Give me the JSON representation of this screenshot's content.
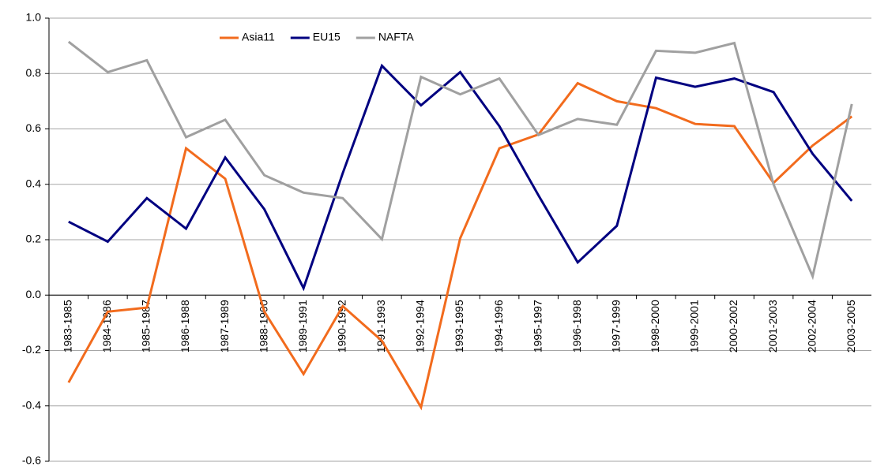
{
  "chart_data": {
    "type": "line",
    "categories": [
      "1983-1985",
      "1984-1986",
      "1985-1987",
      "1986-1988",
      "1987-1989",
      "1988-1990",
      "1989-1991",
      "1990-1992",
      "1991-1993",
      "1992-1994",
      "1993-1995",
      "1994-1996",
      "1995-1997",
      "1996-1998",
      "1997-1999",
      "1998-2000",
      "1999-2001",
      "2000-2002",
      "2001-2003",
      "2002-2004",
      "2003-2005"
    ],
    "series": [
      {
        "name": "Asia11",
        "color": "#f26b1d",
        "values": [
          -0.316,
          -0.06,
          -0.045,
          0.53,
          0.42,
          -0.06,
          -0.285,
          -0.04,
          -0.165,
          -0.405,
          0.205,
          0.53,
          0.58,
          0.765,
          0.7,
          0.675,
          0.618,
          0.61,
          0.405,
          0.54,
          0.645
        ]
      },
      {
        "name": "EU15",
        "color": "#000080",
        "values": [
          0.265,
          0.193,
          0.35,
          0.24,
          0.497,
          0.31,
          0.025,
          0.44,
          0.828,
          0.685,
          0.805,
          0.61,
          0.36,
          0.118,
          0.25,
          0.785,
          0.752,
          0.782,
          0.733,
          0.51,
          0.34
        ]
      },
      {
        "name": "NAFTA",
        "color": "#a0a0a0",
        "values": [
          0.915,
          0.805,
          0.848,
          0.57,
          0.633,
          0.433,
          0.37,
          0.35,
          0.202,
          0.788,
          0.725,
          0.782,
          0.578,
          0.636,
          0.615,
          0.882,
          0.875,
          0.91,
          0.4,
          0.068,
          0.69
        ]
      }
    ],
    "ylim": [
      -0.6,
      1.0
    ],
    "yticks": [
      -0.6,
      -0.4,
      -0.2,
      {
        "value": 0,
        "label": "0.0"
      },
      0.2,
      0.4,
      0.6,
      0.8,
      {
        "value": 1,
        "label": "1.0"
      }
    ],
    "grid": true,
    "legend": "top"
  }
}
